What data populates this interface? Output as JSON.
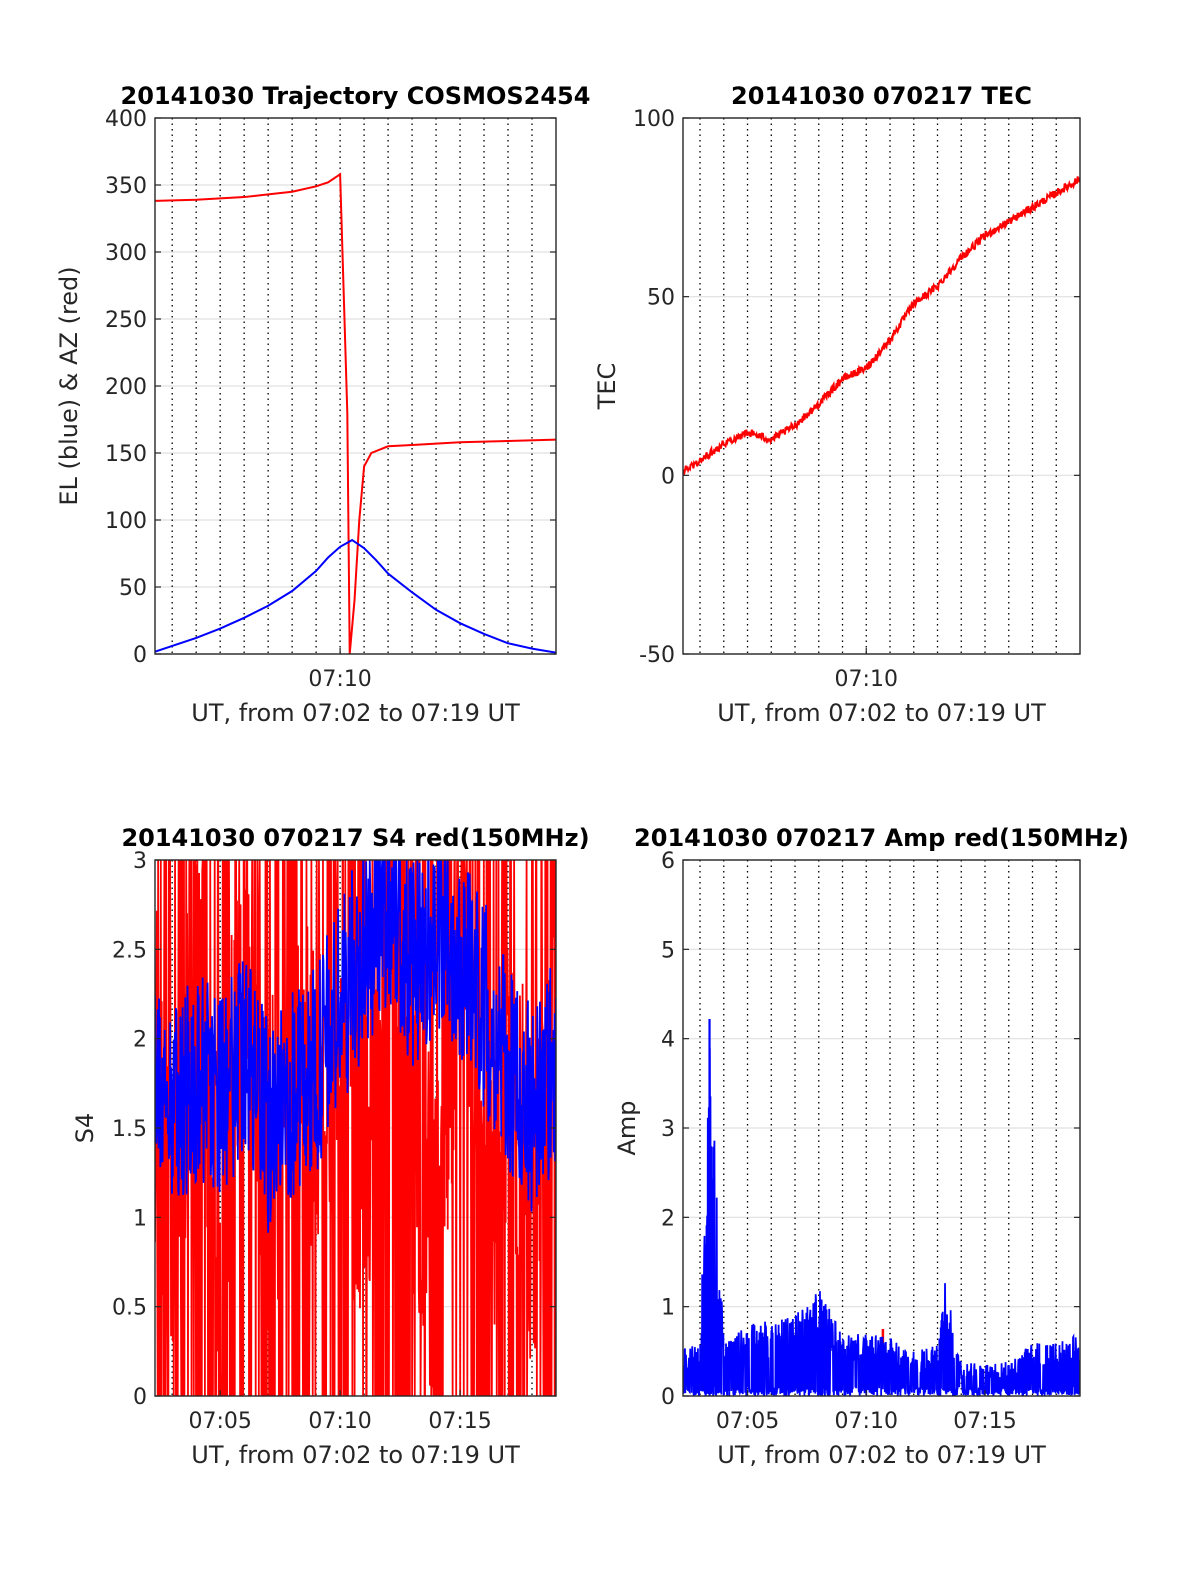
{
  "chart_data": [
    {
      "type": "line",
      "title": "20141030 Trajectory COSMOS2454",
      "xlabel": "UT, from 07:02 to 07:19 UT",
      "ylabel": "EL (blue) & AZ (red)",
      "xlim": [
        "07:02",
        "07:19"
      ],
      "ylim": [
        0,
        400
      ],
      "xticks": [
        "07:10"
      ],
      "yticks": [
        0,
        50,
        100,
        150,
        200,
        250,
        300,
        350,
        400
      ],
      "grid": true,
      "series": [
        {
          "color": "#ff0000",
          "x": [
            "07:02",
            "07:04",
            "07:06",
            "07:07",
            "07:08",
            "07:09",
            "07:09.5",
            "07:10",
            "07:10.3",
            "07:10.4",
            "07:10.6",
            "07:10.8",
            "07:11",
            "07:11.3",
            "07:12",
            "07:13",
            "07:15",
            "07:17",
            "07:19"
          ],
          "values": [
            338,
            339,
            341,
            343,
            345,
            349,
            352,
            358,
            180,
            0,
            40,
            100,
            140,
            150,
            155,
            156,
            158,
            159,
            160
          ]
        },
        {
          "color": "#0000ff",
          "x": [
            "07:02",
            "07:03",
            "07:04",
            "07:05",
            "07:06",
            "07:07",
            "07:08",
            "07:09",
            "07:09.5",
            "07:10",
            "07:10.5",
            "07:11",
            "07:11.5",
            "07:12",
            "07:13",
            "07:14",
            "07:15",
            "07:16",
            "07:17",
            "07:18",
            "07:19"
          ],
          "values": [
            0,
            6,
            12,
            19,
            27,
            36,
            47,
            62,
            72,
            80,
            85,
            79,
            70,
            60,
            46,
            33,
            23,
            15,
            8,
            4,
            1
          ]
        }
      ]
    },
    {
      "type": "line",
      "title": "20141030 070217 TEC",
      "xlabel": "UT, from 07:02 to 07:19 UT",
      "ylabel": "TEC",
      "xlim": [
        "07:02",
        "07:19"
      ],
      "ylim": [
        -50,
        100
      ],
      "xticks": [
        "07:10"
      ],
      "yticks": [
        -50,
        0,
        50,
        100
      ],
      "grid": true,
      "series": [
        {
          "color": "#ff0000",
          "x": [
            "07:02",
            "07:03",
            "07:04",
            "07:05",
            "07:06",
            "07:07",
            "07:08",
            "07:09",
            "07:10",
            "07:11",
            "07:12",
            "07:13",
            "07:14",
            "07:15",
            "07:16",
            "07:17",
            "07:18",
            "07:19"
          ],
          "values": [
            0,
            4,
            9,
            12,
            10,
            14,
            20,
            27,
            30,
            38,
            48,
            53,
            61,
            67,
            71,
            75,
            79,
            83
          ]
        }
      ]
    },
    {
      "type": "line",
      "title": "20141030 070217 S4 red(150MHz)",
      "xlabel": "UT, from 07:02 to 07:19 UT",
      "ylabel": "S4",
      "xlim": [
        "07:02",
        "07:19"
      ],
      "ylim": [
        0,
        3
      ],
      "xticks": [
        "07:05",
        "07:10",
        "07:15"
      ],
      "yticks": [
        0,
        0.5,
        1,
        1.5,
        2,
        2.5,
        3
      ],
      "grid": true,
      "series": [
        {
          "color": "#ff0000",
          "x": [
            "07:02",
            "07:03",
            "07:04",
            "07:05",
            "07:06",
            "07:07",
            "07:08",
            "07:09",
            "07:10",
            "07:11",
            "07:12",
            "07:13",
            "07:14",
            "07:15",
            "07:16",
            "07:17",
            "07:18",
            "07:19"
          ],
          "values": [
            2.2,
            1.0,
            2.5,
            0.5,
            2.8,
            1.2,
            2.0,
            1.5,
            1.9,
            1.2,
            3.0,
            1.5,
            0.8,
            2.7,
            0.5,
            2.0,
            1.0,
            2.6
          ]
        },
        {
          "color": "#0000ff",
          "x": [
            "07:02",
            "07:03",
            "07:04",
            "07:05",
            "07:06",
            "07:07",
            "07:08",
            "07:09",
            "07:10",
            "07:11",
            "07:12",
            "07:13",
            "07:14",
            "07:15",
            "07:16",
            "07:17",
            "07:18",
            "07:19"
          ],
          "values": [
            1.9,
            1.6,
            1.8,
            1.7,
            1.9,
            1.5,
            1.7,
            1.8,
            2.2,
            2.5,
            2.8,
            2.4,
            2.6,
            2.5,
            2.2,
            1.8,
            1.6,
            1.9
          ]
        }
      ]
    },
    {
      "type": "line",
      "title": "20141030 070217 Amp red(150MHz)",
      "xlabel": "UT, from 07:02 to 07:19 UT",
      "ylabel": "Amp",
      "xlim": [
        "07:02",
        "07:19"
      ],
      "ylim": [
        0,
        6
      ],
      "xticks": [
        "07:05",
        "07:10",
        "07:15"
      ],
      "yticks": [
        0,
        1,
        2,
        3,
        4,
        5,
        6
      ],
      "grid": true,
      "series": [
        {
          "color": "#ff0000",
          "x": [
            "07:10.7"
          ],
          "values": [
            0.75
          ]
        },
        {
          "color": "#0000ff",
          "x": [
            "07:02",
            "07:03",
            "07:03.4",
            "07:04",
            "07:05",
            "07:06",
            "07:07",
            "07:08",
            "07:09",
            "07:10",
            "07:11",
            "07:12",
            "07:13",
            "07:13.3",
            "07:14",
            "07:15",
            "07:16",
            "07:17",
            "07:18",
            "07:19"
          ],
          "values": [
            0.5,
            0.6,
            4.22,
            0.6,
            0.8,
            0.85,
            0.9,
            1.2,
            0.7,
            0.7,
            0.65,
            0.5,
            0.6,
            1.3,
            0.4,
            0.35,
            0.4,
            0.6,
            0.6,
            0.7
          ]
        }
      ]
    }
  ]
}
